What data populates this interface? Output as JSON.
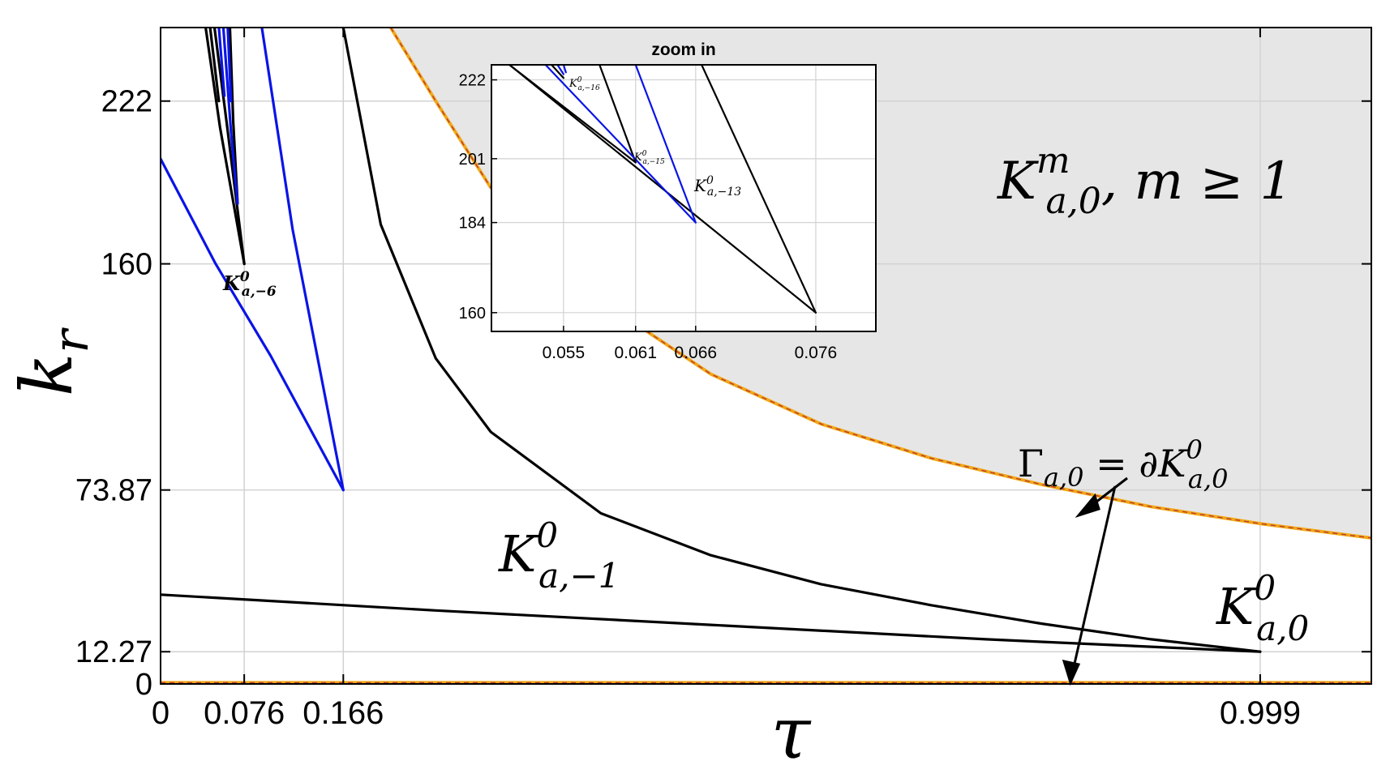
{
  "chart_data": {
    "type": "line",
    "title": "",
    "xlabel": "τ",
    "ylabel": "k_r",
    "xlim": [
      0,
      1.1
    ],
    "ylim": [
      0,
      250
    ],
    "x_ticks": [
      0,
      0.076,
      0.166,
      0.999
    ],
    "x_tick_labels": [
      "0",
      "0.076",
      "0.166",
      "0.999"
    ],
    "y_ticks": [
      0,
      12.27,
      73.87,
      160,
      222
    ],
    "y_tick_labels": [
      "0",
      "12.27",
      "73.87",
      "160",
      "222"
    ],
    "grid": true,
    "shaded_region_color": "#e6e6e6",
    "colors": {
      "black": "#000000",
      "blue": "#0a14e6",
      "orange": "#f0a818",
      "red_dash": "#c0392b"
    },
    "region_labels": [
      {
        "base": "K",
        "sup": "m",
        "sub": "a,0",
        "suffix": ", m ≥ 1"
      },
      {
        "base": "K",
        "sup": "0",
        "sub": "a,−1"
      },
      {
        "base": "K",
        "sup": "0",
        "sub": "a,0"
      },
      {
        "base": "K",
        "sup": "0",
        "sub": "a,−6"
      }
    ],
    "annotation": {
      "lhs": "Γ",
      "lhs_sub": "a,0",
      "rhs": " = ∂K",
      "rhs_sup": "0",
      "rhs_sub": "a,0"
    },
    "series": [
      {
        "color": "black",
        "points": [
          [
            0,
            34
          ],
          [
            0.25,
            28
          ],
          [
            0.5,
            22.5
          ],
          [
            0.75,
            17
          ],
          [
            0.999,
            12.27
          ]
        ]
      },
      {
        "color": "black",
        "points": [
          [
            0.166,
            250
          ],
          [
            0.2,
            175
          ],
          [
            0.25,
            124
          ],
          [
            0.3,
            96
          ],
          [
            0.4,
            65
          ],
          [
            0.5,
            49
          ],
          [
            0.6,
            38
          ],
          [
            0.7,
            30
          ],
          [
            0.8,
            23
          ],
          [
            0.9,
            17
          ],
          [
            0.999,
            12.27
          ]
        ]
      },
      {
        "color": "boundary",
        "points": [
          [
            0.209,
            250
          ],
          [
            0.25,
            222
          ],
          [
            0.3,
            189
          ],
          [
            0.4,
            146
          ],
          [
            0.5,
            118
          ],
          [
            0.6,
            99
          ],
          [
            0.7,
            86
          ],
          [
            0.8,
            76
          ],
          [
            0.9,
            67.5
          ],
          [
            1.0,
            61
          ],
          [
            1.1,
            55.6
          ]
        ]
      },
      {
        "color": "boundary",
        "points": [
          [
            0,
            0.5
          ],
          [
            1.1,
            0.5
          ]
        ]
      },
      {
        "color": "blue",
        "points": [
          [
            0,
            200
          ],
          [
            0.05,
            160
          ],
          [
            0.1,
            125
          ],
          [
            0.166,
            73.87
          ]
        ]
      },
      {
        "color": "blue",
        "points": [
          [
            0.092,
            250
          ],
          [
            0.12,
            173
          ],
          [
            0.166,
            73.87
          ]
        ]
      },
      {
        "color": "black",
        "points": [
          [
            0.041,
            250
          ],
          [
            0.054,
            212
          ],
          [
            0.076,
            160
          ]
        ]
      },
      {
        "color": "black",
        "points": [
          [
            0.049,
            250
          ],
          [
            0.06,
            214
          ],
          [
            0.076,
            160
          ]
        ]
      },
      {
        "color": "black",
        "points": [
          [
            0.063,
            250
          ],
          [
            0.066,
            214
          ],
          [
            0.07,
            183
          ]
        ]
      },
      {
        "color": "blue",
        "points": [
          [
            0.057,
            250
          ],
          [
            0.064,
            210
          ],
          [
            0.07,
            183
          ]
        ]
      },
      {
        "color": "black",
        "points": [
          [
            0.045,
            250
          ],
          [
            0.053,
            222
          ]
        ]
      },
      {
        "color": "blue",
        "points": [
          [
            0.053,
            250
          ],
          [
            0.058,
            224
          ]
        ]
      },
      {
        "color": "blue",
        "points": [
          [
            0.061,
            250
          ],
          [
            0.064,
            222
          ]
        ]
      }
    ],
    "inset": {
      "title": "zoom in",
      "xlim": [
        0.049,
        0.081
      ],
      "ylim": [
        155,
        226
      ],
      "x_ticks": [
        0.055,
        0.061,
        0.066,
        0.076
      ],
      "x_tick_labels": [
        "0.055",
        "0.061",
        "0.066",
        "0.076"
      ],
      "y_ticks": [
        160,
        184,
        201,
        222
      ],
      "y_tick_labels": [
        "160",
        "184",
        "201",
        "222"
      ],
      "labels": [
        {
          "base": "K",
          "sup": "0",
          "sub": "a,−16"
        },
        {
          "base": "K",
          "sup": "0",
          "sub": "a,−15"
        },
        {
          "base": "K",
          "sup": "0",
          "sub": "a,−13"
        }
      ],
      "series": [
        {
          "color": "black",
          "points": [
            [
              0.0505,
              226
            ],
            [
              0.076,
              160
            ]
          ]
        },
        {
          "color": "black",
          "points": [
            [
              0.0665,
              226
            ],
            [
              0.076,
              160
            ]
          ]
        },
        {
          "color": "black",
          "points": [
            [
              0.058,
              226
            ],
            [
              0.061,
              200
            ]
          ]
        },
        {
          "color": "black",
          "points": [
            [
              0.0505,
              226
            ],
            [
              0.061,
              200
            ]
          ]
        },
        {
          "color": "black",
          "points": [
            [
              0.054,
              226
            ],
            [
              0.055,
              222.5
            ]
          ]
        },
        {
          "color": "blue",
          "points": [
            [
              0.0535,
              226
            ],
            [
              0.066,
              184
            ]
          ]
        },
        {
          "color": "blue",
          "points": [
            [
              0.061,
              226
            ],
            [
              0.066,
              184
            ]
          ]
        },
        {
          "color": "blue",
          "points": [
            [
              0.0545,
              226
            ],
            [
              0.055,
              223.5
            ]
          ]
        },
        {
          "color": "blue",
          "points": [
            [
              0.055,
              226
            ],
            [
              0.0552,
              224
            ]
          ]
        }
      ]
    }
  }
}
